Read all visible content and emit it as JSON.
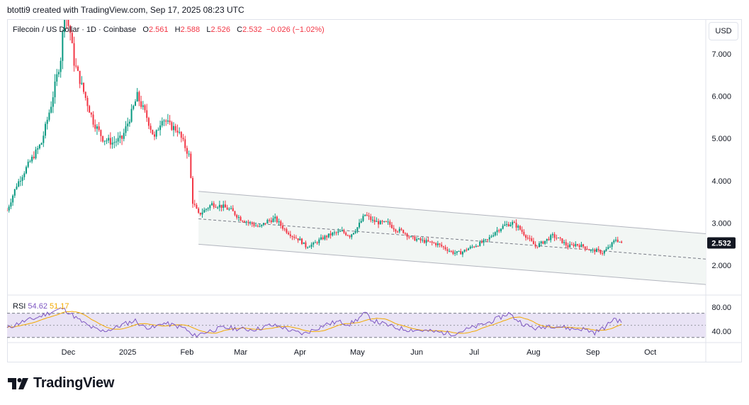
{
  "header": {
    "credit": "btotti9 created with TradingView.com, Sep 17, 2025 08:23 UTC"
  },
  "legend": {
    "symbol": "Filecoin / US Dollar · 1D · Coinbase",
    "open_label": "O",
    "open": "2.561",
    "high_label": "H",
    "high": "2.588",
    "low_label": "L",
    "low": "2.526",
    "close_label": "C",
    "close": "2.532",
    "change": "−0.026 (−1.02%)"
  },
  "currency_button": "USD",
  "last_price": "2.532",
  "rsi": {
    "name": "RSI",
    "value1": "54.62",
    "value2": "51.17"
  },
  "brand": "TradingView",
  "colors": {
    "up": "#089981",
    "down": "#f23645",
    "channel_fill": "#f2f6f4",
    "rsi": "#7e57c2",
    "rsi_ma": "#f2a900",
    "rsi_band": "#e9e3f5"
  },
  "chart_data": {
    "type": "candlestick",
    "title": "Filecoin / US Dollar · 1D · Coinbase",
    "x_ticks": [
      "Dec",
      "2025",
      "Feb",
      "Mar",
      "Apr",
      "May",
      "Jun",
      "Jul",
      "Aug",
      "Sep",
      "Oct"
    ],
    "x_tick_days": [
      17,
      48,
      79,
      107,
      138,
      168,
      199,
      229,
      260,
      291,
      321
    ],
    "y_ticks": [
      "7.000",
      "6.000",
      "5.000",
      "4.000",
      "3.000",
      "2.000"
    ],
    "y_tick_values": [
      7,
      6,
      5,
      4,
      3,
      2
    ],
    "ylim": [
      1.3,
      7.8
    ],
    "xlim": [
      -15,
      350
    ],
    "last_day": 306,
    "price_anchors": [
      [
        -15,
        3.3
      ],
      [
        -10,
        3.9
      ],
      [
        -5,
        4.3
      ],
      [
        3,
        4.9
      ],
      [
        8,
        5.8
      ],
      [
        13,
        6.9
      ],
      [
        15,
        8.0
      ],
      [
        18,
        7.5
      ],
      [
        20,
        6.8
      ],
      [
        25,
        6.1
      ],
      [
        30,
        5.4
      ],
      [
        35,
        5.0
      ],
      [
        40,
        4.9
      ],
      [
        45,
        5.0
      ],
      [
        50,
        5.6
      ],
      [
        53,
        6.0
      ],
      [
        58,
        5.5
      ],
      [
        62,
        5.0
      ],
      [
        66,
        5.5
      ],
      [
        70,
        5.3
      ],
      [
        74,
        5.2
      ],
      [
        78,
        4.8
      ],
      [
        80,
        4.6
      ],
      [
        82,
        3.5
      ],
      [
        85,
        3.2
      ],
      [
        88,
        3.3
      ],
      [
        92,
        3.45
      ],
      [
        97,
        3.4
      ],
      [
        102,
        3.3
      ],
      [
        107,
        3.1
      ],
      [
        112,
        3.0
      ],
      [
        117,
        2.9
      ],
      [
        121,
        3.05
      ],
      [
        125,
        3.1
      ],
      [
        130,
        2.85
      ],
      [
        134,
        2.7
      ],
      [
        138,
        2.6
      ],
      [
        141,
        2.45
      ],
      [
        145,
        2.5
      ],
      [
        150,
        2.65
      ],
      [
        155,
        2.75
      ],
      [
        160,
        2.8
      ],
      [
        164,
        2.7
      ],
      [
        168,
        2.9
      ],
      [
        172,
        3.2
      ],
      [
        176,
        3.05
      ],
      [
        180,
        3.0
      ],
      [
        184,
        3.0
      ],
      [
        188,
        2.85
      ],
      [
        192,
        2.8
      ],
      [
        196,
        2.65
      ],
      [
        200,
        2.6
      ],
      [
        205,
        2.55
      ],
      [
        210,
        2.5
      ],
      [
        214,
        2.4
      ],
      [
        218,
        2.3
      ],
      [
        222,
        2.3
      ],
      [
        226,
        2.4
      ],
      [
        231,
        2.5
      ],
      [
        236,
        2.6
      ],
      [
        240,
        2.8
      ],
      [
        245,
        2.95
      ],
      [
        249,
        3.0
      ],
      [
        252,
        2.9
      ],
      [
        255,
        2.75
      ],
      [
        258,
        2.6
      ],
      [
        261,
        2.45
      ],
      [
        265,
        2.55
      ],
      [
        270,
        2.7
      ],
      [
        274,
        2.6
      ],
      [
        278,
        2.45
      ],
      [
        282,
        2.5
      ],
      [
        286,
        2.45
      ],
      [
        290,
        2.35
      ],
      [
        293,
        2.35
      ],
      [
        296,
        2.3
      ],
      [
        300,
        2.45
      ],
      [
        303,
        2.62
      ],
      [
        306,
        2.532
      ]
    ],
    "channel": {
      "upper": [
        [
          85,
          3.75
        ],
        [
          350,
          2.75
        ]
      ],
      "mid": [
        [
          85,
          3.1
        ],
        [
          350,
          2.15
        ]
      ],
      "lower": [
        [
          85,
          2.5
        ],
        [
          350,
          1.55
        ]
      ]
    },
    "rsi": {
      "ylim": [
        25,
        100
      ],
      "y_ticks": [
        "80.00",
        "40.00"
      ],
      "y_tick_values": [
        80,
        40
      ],
      "band": [
        30,
        70
      ],
      "mid": 50,
      "anchors": [
        [
          -15,
          45
        ],
        [
          -8,
          55
        ],
        [
          0,
          62
        ],
        [
          8,
          72
        ],
        [
          14,
          78
        ],
        [
          18,
          70
        ],
        [
          22,
          60
        ],
        [
          28,
          48
        ],
        [
          34,
          40
        ],
        [
          40,
          44
        ],
        [
          46,
          52
        ],
        [
          52,
          58
        ],
        [
          56,
          48
        ],
        [
          62,
          46
        ],
        [
          66,
          54
        ],
        [
          72,
          50
        ],
        [
          78,
          45
        ],
        [
          82,
          32
        ],
        [
          86,
          36
        ],
        [
          92,
          42
        ],
        [
          98,
          46
        ],
        [
          104,
          45
        ],
        [
          110,
          43
        ],
        [
          116,
          44
        ],
        [
          122,
          50
        ],
        [
          128,
          48
        ],
        [
          134,
          40
        ],
        [
          140,
          36
        ],
        [
          146,
          44
        ],
        [
          152,
          52
        ],
        [
          158,
          56
        ],
        [
          164,
          52
        ],
        [
          168,
          60
        ],
        [
          172,
          70
        ],
        [
          176,
          58
        ],
        [
          182,
          52
        ],
        [
          188,
          46
        ],
        [
          194,
          43
        ],
        [
          200,
          42
        ],
        [
          206,
          40
        ],
        [
          212,
          38
        ],
        [
          218,
          36
        ],
        [
          224,
          42
        ],
        [
          230,
          48
        ],
        [
          236,
          54
        ],
        [
          242,
          62
        ],
        [
          247,
          70
        ],
        [
          250,
          62
        ],
        [
          256,
          50
        ],
        [
          262,
          44
        ],
        [
          268,
          50
        ],
        [
          274,
          48
        ],
        [
          280,
          44
        ],
        [
          286,
          44
        ],
        [
          292,
          38
        ],
        [
          298,
          48
        ],
        [
          302,
          62
        ],
        [
          306,
          54.62
        ]
      ]
    }
  }
}
